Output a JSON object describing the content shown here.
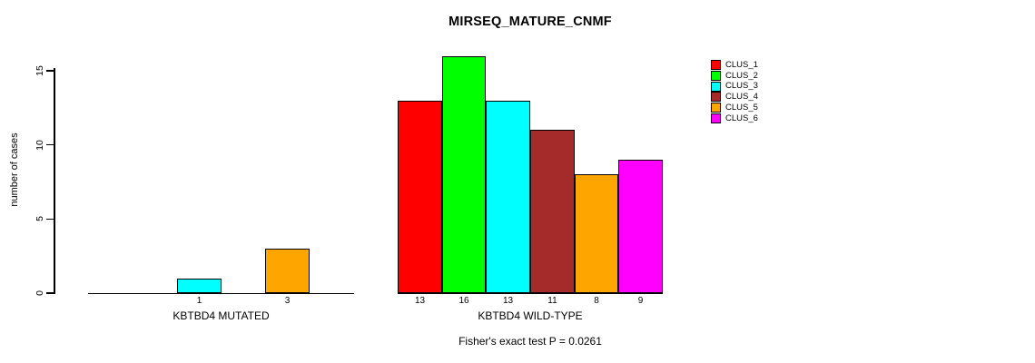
{
  "chart_data": {
    "type": "bar",
    "title": "MIRSEQ_MATURE_CNMF",
    "ylabel": "number of cases",
    "xlabel": "",
    "ylim": [
      0,
      16
    ],
    "yticks": [
      0,
      5,
      10,
      15
    ],
    "grid": false,
    "legend_position": "right-outside",
    "legend": [
      {
        "label": "CLUS_1",
        "color": "#ff0000"
      },
      {
        "label": "CLUS_2",
        "color": "#00ff00"
      },
      {
        "label": "CLUS_3",
        "color": "#00ffff"
      },
      {
        "label": "CLUS_4",
        "color": "#a52a2a"
      },
      {
        "label": "CLUS_5",
        "color": "#ffa500"
      },
      {
        "label": "CLUS_6",
        "color": "#ff00ff"
      }
    ],
    "groups": [
      {
        "label": "KBTBD4 MUTATED",
        "series": [
          "CLUS_1",
          "CLUS_2",
          "CLUS_3",
          "CLUS_4",
          "CLUS_5",
          "CLUS_6"
        ],
        "values": [
          0,
          0,
          1,
          0,
          3,
          0
        ],
        "bar_labels": [
          "",
          "",
          "1",
          "",
          "3",
          ""
        ]
      },
      {
        "label": "KBTBD4 WILD-TYPE",
        "series": [
          "CLUS_1",
          "CLUS_2",
          "CLUS_3",
          "CLUS_4",
          "CLUS_5",
          "CLUS_6"
        ],
        "values": [
          13,
          16,
          13,
          11,
          8,
          9
        ],
        "bar_labels": [
          "13",
          "16",
          "13",
          "11",
          "8",
          "9"
        ]
      }
    ],
    "annotation": "Fisher's exact test P = 0.0261",
    "colors": {
      "axis": "#000000",
      "text": "#000000",
      "background": "#ffffff"
    }
  }
}
